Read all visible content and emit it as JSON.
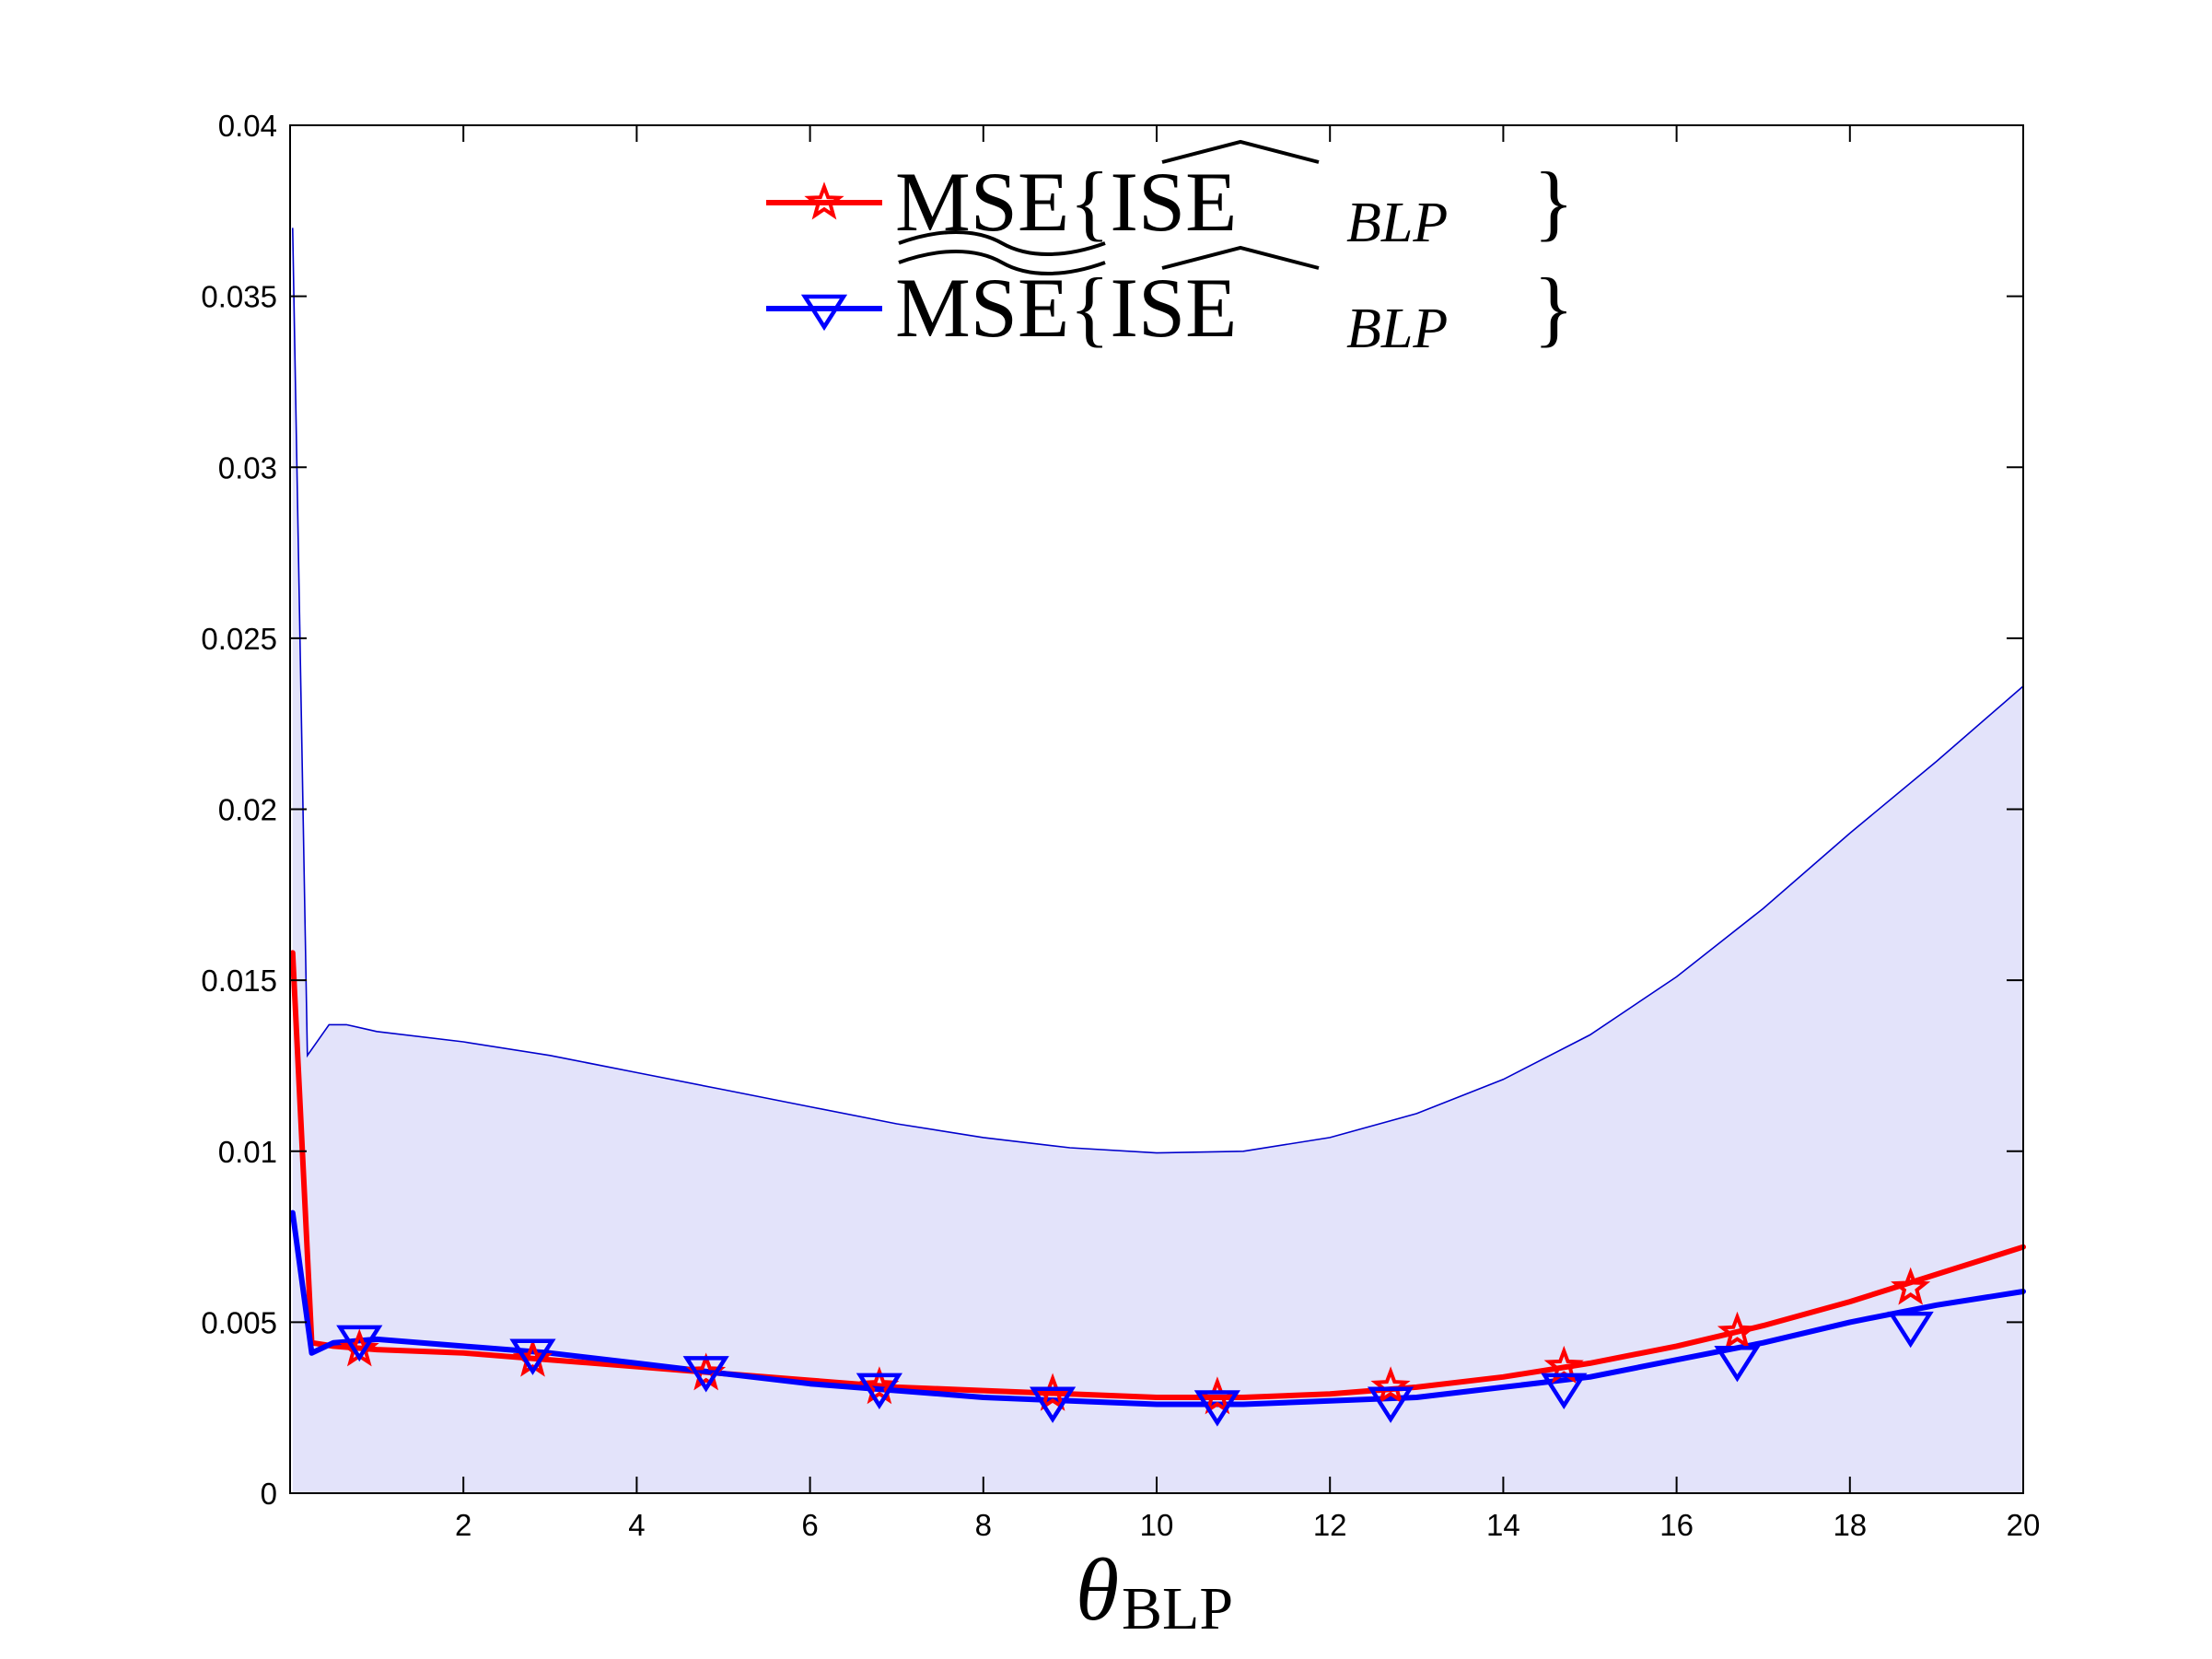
{
  "chart_data": {
    "type": "line",
    "title": "",
    "xlabel": {
      "symbol": "θ",
      "subscript": "BLP"
    },
    "ylabel": "",
    "xlim": [
      0,
      20
    ],
    "ylim": [
      0,
      0.04
    ],
    "x_ticks": [
      2,
      4,
      6,
      8,
      10,
      12,
      14,
      16,
      18,
      20
    ],
    "x_tick_labels": [
      "2",
      "4",
      "6",
      "8",
      "10",
      "12",
      "14",
      "16",
      "18",
      "20"
    ],
    "y_ticks": [
      0,
      0.005,
      0.01,
      0.015,
      0.02,
      0.025,
      0.03,
      0.035,
      0.04
    ],
    "y_tick_labels": [
      "0",
      "0.005",
      "0.01",
      "0.015",
      "0.02",
      "0.025",
      "0.03",
      "0.035",
      "0.04"
    ],
    "grid": false,
    "legend_position": "top-center",
    "band": {
      "name": "interval",
      "fill_color": "#e3e3fa",
      "edge_color": "#0000cc",
      "x": [
        0.03,
        0.2,
        0.45,
        0.65,
        1,
        2,
        3,
        4,
        5,
        6,
        7,
        8,
        9,
        10,
        11,
        12,
        13,
        14,
        15,
        16,
        17,
        18,
        19,
        20
      ],
      "upper": [
        0.037,
        0.0128,
        0.0137,
        0.0137,
        0.0135,
        0.0132,
        0.0128,
        0.0123,
        0.0118,
        0.0113,
        0.0108,
        0.0104,
        0.0101,
        0.00995,
        0.01,
        0.0104,
        0.0111,
        0.0121,
        0.0134,
        0.0151,
        0.0171,
        0.0193,
        0.0214,
        0.0236
      ],
      "lower": [
        0,
        0,
        0,
        0,
        0,
        0,
        0,
        0,
        0,
        0,
        0,
        0,
        0,
        0,
        0,
        0,
        0,
        0,
        0,
        0,
        0,
        0,
        0,
        0
      ]
    },
    "series": [
      {
        "name": "red",
        "legend_main": "MSE{ISE",
        "legend_sub": "BLP",
        "legend_close": "}",
        "legend_decoration": "underline-tilde",
        "color": "#ff0000",
        "marker": "star",
        "x": [
          0.03,
          0.25,
          0.5,
          1,
          2,
          3,
          4,
          5,
          6,
          7,
          8,
          9,
          10,
          11,
          12,
          13,
          14,
          15,
          16,
          17,
          18,
          19,
          20
        ],
        "y": [
          0.0158,
          0.0044,
          0.0043,
          0.0042,
          0.0041,
          0.0039,
          0.0037,
          0.0035,
          0.0033,
          0.0031,
          0.003,
          0.0029,
          0.0028,
          0.0028,
          0.0029,
          0.0031,
          0.0034,
          0.0038,
          0.0043,
          0.0049,
          0.0056,
          0.0064,
          0.0072
        ],
        "marker_x": [
          0.8,
          2.8,
          4.8,
          6.8,
          8.8,
          10.7,
          12.7,
          14.7,
          16.7,
          18.7
        ],
        "marker_y": [
          0.0042,
          0.0039,
          0.0035,
          0.0031,
          0.0029,
          0.0028,
          0.0031,
          0.0037,
          0.0047,
          0.006
        ]
      },
      {
        "name": "blue",
        "legend_main": "MSE{ISE",
        "legend_sub": "BLP",
        "legend_close": "}",
        "legend_decoration": "overline-tilde",
        "color": "#0000ff",
        "marker": "triangle-down",
        "x": [
          0.03,
          0.25,
          0.5,
          1,
          2,
          3,
          4,
          5,
          6,
          7,
          8,
          9,
          10,
          11,
          12,
          13,
          14,
          15,
          16,
          17,
          18,
          19,
          20
        ],
        "y": [
          0.0082,
          0.0041,
          0.0044,
          0.0045,
          0.0043,
          0.0041,
          0.0038,
          0.0035,
          0.0032,
          0.003,
          0.0028,
          0.0027,
          0.0026,
          0.0026,
          0.0027,
          0.0028,
          0.0031,
          0.0034,
          0.0039,
          0.0044,
          0.005,
          0.0055,
          0.0059
        ],
        "marker_x": [
          0.8,
          2.8,
          4.8,
          6.8,
          8.8,
          10.7,
          12.7,
          14.7,
          16.7,
          18.7
        ],
        "marker_y": [
          0.0045,
          0.0041,
          0.0036,
          0.0031,
          0.0027,
          0.0026,
          0.0027,
          0.0031,
          0.0039,
          0.0049
        ]
      }
    ]
  }
}
